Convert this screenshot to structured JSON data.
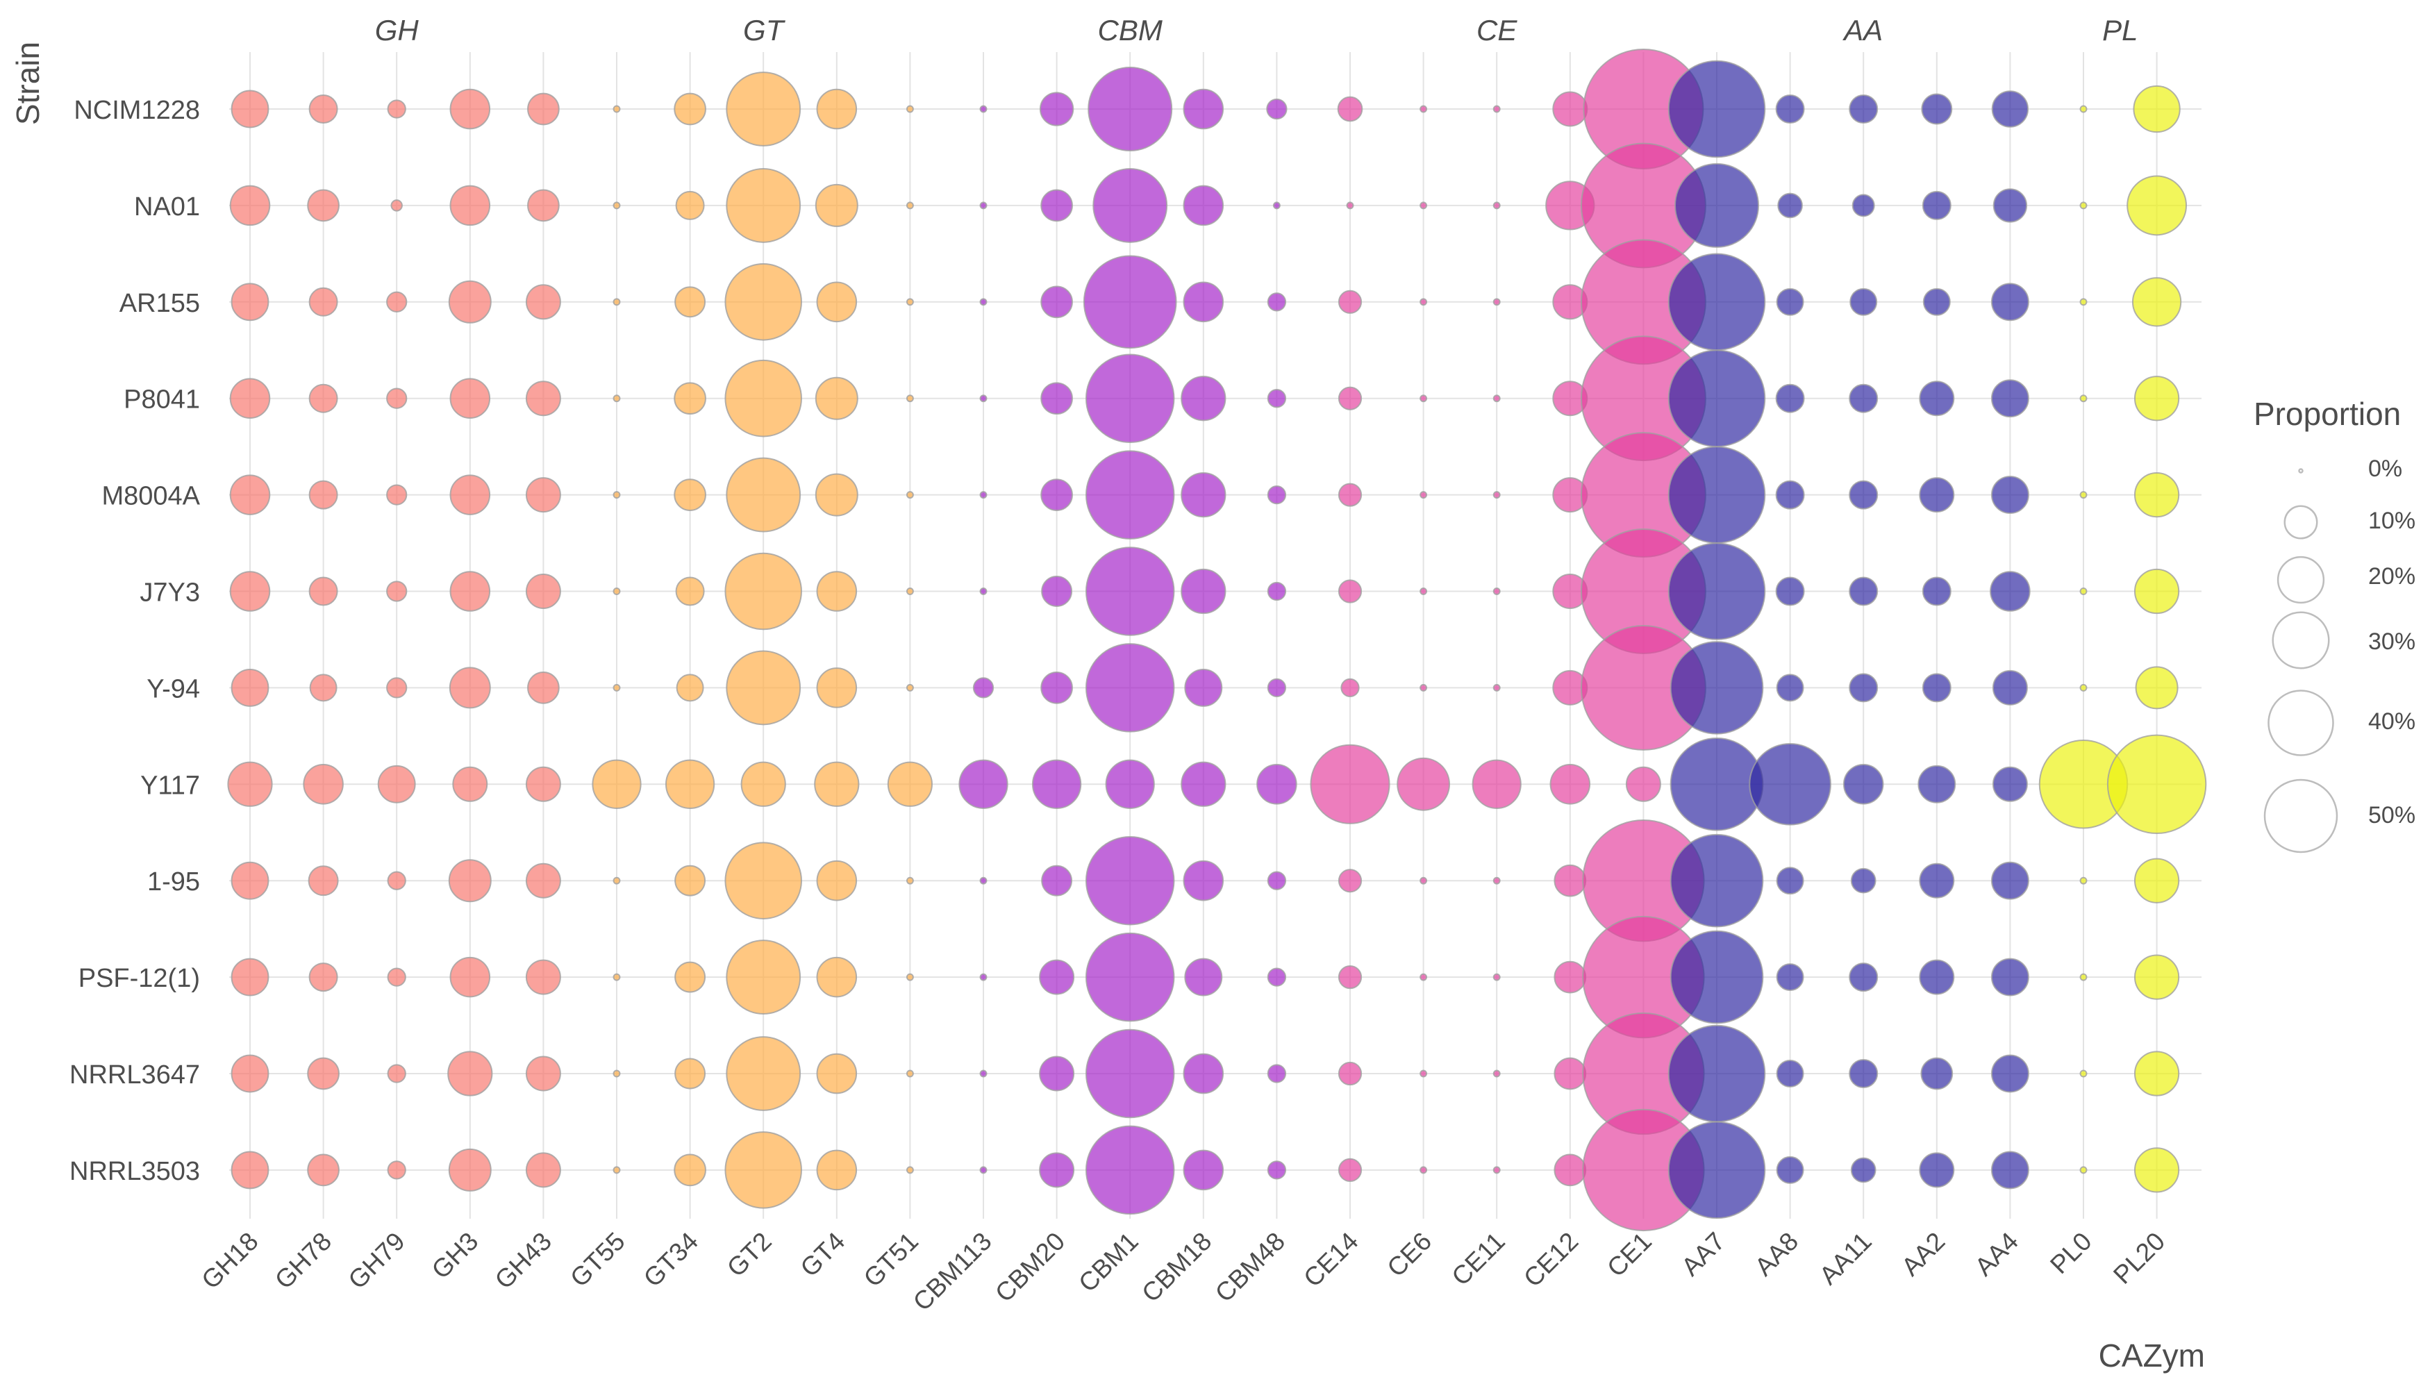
{
  "chart_data": {
    "type": "bubble",
    "title": "",
    "xlabel": "CAZym",
    "ylabel": "Strain",
    "categories": [
      "GH18",
      "GH78",
      "GH79",
      "GH3",
      "GH43",
      "GT55",
      "GT34",
      "GT2",
      "GT4",
      "GT51",
      "CBM113",
      "CBM20",
      "CBM1",
      "CBM18",
      "CBM48",
      "CE14",
      "CE6",
      "CE11",
      "CE12",
      "CE1",
      "AA7",
      "AA8",
      "AA11",
      "AA2",
      "AA4",
      "PL0",
      "PL20"
    ],
    "groups": [
      {
        "name": "GH",
        "members": [
          "GH18",
          "GH78",
          "GH79",
          "GH3",
          "GH43"
        ],
        "color": "#f8766d"
      },
      {
        "name": "GT",
        "members": [
          "GT55",
          "GT34",
          "GT2",
          "GT4",
          "GT51"
        ],
        "color": "#ffad45"
      },
      {
        "name": "CBM",
        "members": [
          "CBM113",
          "CBM20",
          "CBM1",
          "CBM18",
          "CBM48"
        ],
        "color": "#a320c8"
      },
      {
        "name": "CE",
        "members": [
          "CE14",
          "CE6",
          "CE11",
          "CE12",
          "CE1"
        ],
        "color": "#e5409e"
      },
      {
        "name": "AA",
        "members": [
          "AA7",
          "AA8",
          "AA11",
          "AA2",
          "AA4"
        ],
        "color": "#2e27a0"
      },
      {
        "name": "PL",
        "members": [
          "PL0",
          "PL20"
        ],
        "color": "#ecf20e"
      }
    ],
    "strains": [
      "NCIM1228",
      "NA01",
      "AR155",
      "P8041",
      "M8004A",
      "J7Y3",
      "Y-94",
      "Y117",
      "1-95",
      "PSF-12(1)",
      "NRRL3647",
      "NRRL3503"
    ],
    "unit": "Proportion (%)",
    "series": [
      {
        "name": "NCIM1228",
        "values": [
          3.5,
          2,
          0.8,
          4,
          2.5,
          0.1,
          2.5,
          14,
          4,
          0.1,
          0.1,
          2.8,
          18,
          4,
          1,
          1.5,
          0.1,
          0.1,
          3,
          37,
          24,
          2,
          2,
          2.3,
          3.3,
          0.1,
          5.5
        ]
      },
      {
        "name": "NA01",
        "values": [
          4,
          2.5,
          0.3,
          4,
          2.5,
          0.1,
          2,
          14,
          4.5,
          0.1,
          0.1,
          2.5,
          14,
          4,
          0.1,
          0.1,
          0.1,
          0.1,
          6,
          40,
          18,
          1.5,
          1.2,
          2,
          2.8,
          0.1,
          9
        ]
      },
      {
        "name": "AR155",
        "values": [
          3.5,
          2,
          1,
          4.5,
          3,
          0.1,
          2.3,
          15,
          4,
          0.1,
          0.1,
          2.5,
          22,
          4,
          0.8,
          1.3,
          0.1,
          0.1,
          3,
          40,
          24,
          1.8,
          1.8,
          1.8,
          3.5,
          0.1,
          6
        ]
      },
      {
        "name": "P8041",
        "values": [
          4,
          2,
          1,
          4,
          3,
          0.1,
          2.5,
          15,
          4.5,
          0.1,
          0.1,
          2.5,
          20,
          5,
          0.8,
          1.3,
          0.1,
          0.1,
          3,
          40,
          24,
          2,
          2,
          3,
          3.5,
          0.1,
          5
        ]
      },
      {
        "name": "M8004A",
        "values": [
          4,
          2,
          1,
          4,
          3,
          0.1,
          2.5,
          14,
          4.5,
          0.1,
          0.1,
          2.5,
          20,
          5,
          0.8,
          1.3,
          0.1,
          0.1,
          3,
          40,
          24,
          2,
          2,
          3,
          3.5,
          0.1,
          5
        ]
      },
      {
        "name": "J7Y3",
        "values": [
          4,
          2,
          1,
          4,
          3,
          0.1,
          2,
          15,
          4,
          0.1,
          0.1,
          2.3,
          20,
          5,
          0.8,
          1.3,
          0.1,
          0.1,
          3,
          40,
          24,
          2,
          2,
          2,
          4,
          0.1,
          5
        ]
      },
      {
        "name": "Y-94",
        "values": [
          3.5,
          1.8,
          1,
          4.2,
          2.5,
          0.1,
          1.8,
          14,
          4,
          0.1,
          1,
          2.5,
          20,
          3.5,
          0.8,
          0.8,
          0.1,
          0.1,
          3,
          40,
          22,
          1.8,
          2,
          2,
          3,
          0.1,
          4.5
        ]
      },
      {
        "name": "Y117",
        "values": [
          5,
          4,
          3.5,
          3,
          3,
          6,
          6,
          5,
          5,
          5,
          6,
          6,
          6,
          5,
          4,
          16,
          7,
          6,
          4,
          3,
          22,
          17,
          4,
          3.5,
          3,
          20,
          25
        ]
      },
      {
        "name": "1-95",
        "values": [
          3.5,
          2.2,
          0.8,
          4.5,
          3,
          0.1,
          2.3,
          15,
          4,
          0.1,
          0.1,
          2.3,
          20,
          4,
          0.8,
          1.3,
          0.1,
          0.1,
          2.5,
          38,
          22,
          1.8,
          1.5,
          3,
          3.5,
          0.1,
          5
        ]
      },
      {
        "name": "PSF-12(1)",
        "values": [
          3.5,
          2,
          0.8,
          4,
          3,
          0.1,
          2.3,
          14,
          4,
          0.1,
          0.1,
          3,
          20,
          3.5,
          0.8,
          1.3,
          0.1,
          0.1,
          2.5,
          38,
          22,
          1.8,
          2,
          3,
          3.5,
          0.1,
          5
        ]
      },
      {
        "name": "NRRL3647",
        "values": [
          3.5,
          2.5,
          0.8,
          5,
          3,
          0.1,
          2.3,
          14,
          4,
          0.1,
          0.1,
          3,
          20,
          4,
          0.8,
          1.3,
          0.1,
          0.1,
          2.5,
          38,
          24,
          1.8,
          2,
          2.5,
          3.5,
          0.1,
          5
        ]
      },
      {
        "name": "NRRL3503",
        "values": [
          3.5,
          2.5,
          0.8,
          4.5,
          3,
          0.1,
          2.5,
          15,
          4,
          0.1,
          0.1,
          3,
          20,
          4,
          0.8,
          1.3,
          0.1,
          0.1,
          2.5,
          38,
          24,
          1.8,
          1.5,
          3,
          3.5,
          0.1,
          5
        ]
      }
    ],
    "legend": {
      "title": "Proportion",
      "entries": [
        {
          "label": "0%",
          "value": 0
        },
        {
          "label": "10%",
          "value": 10
        },
        {
          "label": "20%",
          "value": 20
        },
        {
          "label": "30%",
          "value": 30
        },
        {
          "label": "40%",
          "value": 40
        },
        {
          "label": "50%",
          "value": 50
        }
      ],
      "placement": "right"
    },
    "grid": true
  }
}
